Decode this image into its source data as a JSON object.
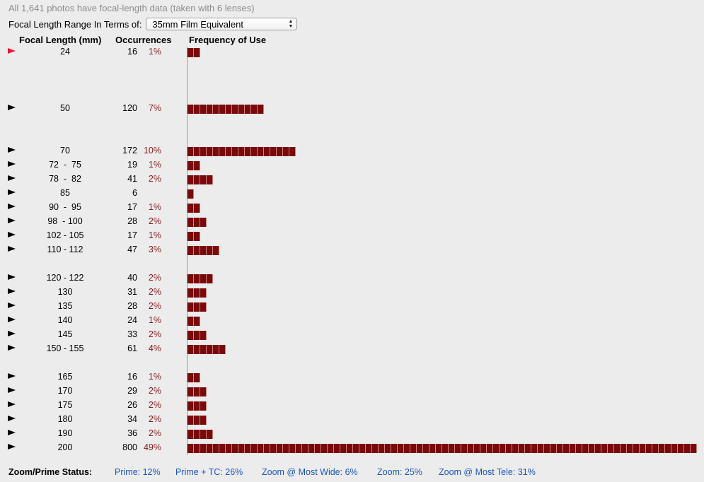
{
  "summary": "All 1,641 photos have focal-length data (taken with 6 lenses)",
  "range_label": "Focal Length Range In Terms of:",
  "range_select": "35mm Film Equivalent",
  "headers": {
    "focal": "Focal Length (mm)",
    "occ": "Occurrences",
    "freq": "Frequency of Use"
  },
  "chart_data": {
    "type": "bar",
    "orientation": "horizontal",
    "categories": [
      "24",
      "50",
      "70",
      "72  -  75",
      "78  -  82",
      "85",
      "90  -  95",
      "98  - 100",
      "102 - 105",
      "110 - 112",
      "120 - 122",
      "130",
      "135",
      "140",
      "145",
      "150 - 155",
      "165",
      "170",
      "175",
      "180",
      "190",
      "200"
    ],
    "values": [
      16,
      120,
      172,
      19,
      41,
      6,
      17,
      28,
      17,
      47,
      40,
      31,
      28,
      24,
      33,
      61,
      16,
      29,
      26,
      34,
      36,
      800
    ],
    "percent_labels": [
      "1%",
      "7%",
      "10%",
      "1%",
      "2%",
      "",
      "1%",
      "2%",
      "1%",
      "3%",
      "2%",
      "2%",
      "2%",
      "1%",
      "2%",
      "4%",
      "1%",
      "2%",
      "2%",
      "2%",
      "2%",
      "49%"
    ],
    "bar_color": "#7a0a0a",
    "pct_color": "#8b1a1a"
  },
  "status": {
    "label": "Zoom/Prime Status:",
    "items": [
      "Prime: 12%",
      "Prime + TC: 26%",
      "Zoom @ Most Wide: 6%",
      "Zoom: 25%",
      "Zoom @ Most Tele: 31%"
    ]
  },
  "colors": {
    "link": "#1a55c8",
    "active_marker": "#e8183c"
  }
}
